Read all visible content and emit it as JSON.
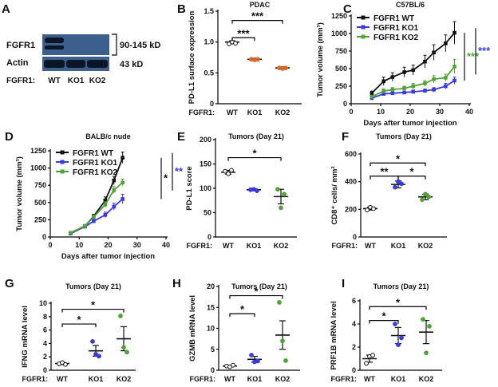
{
  "figure": {
    "background": "#ffffff"
  },
  "blot": {
    "panel_label": "A",
    "rows": [
      {
        "name": "FGFR1",
        "size": "90-145 kD"
      },
      {
        "name": "Actin",
        "size": "43 kD"
      }
    ],
    "genotype_label": "FGFR1:",
    "lanes": [
      "WT",
      "KO1",
      "KO2"
    ],
    "colors": {
      "band_bg": "#3d5f8e",
      "band": "#0b1726"
    }
  },
  "colors": {
    "black": "#111111",
    "blue": "#3b3bdc",
    "green": "#52a23a",
    "orange": "#d46a2a"
  },
  "chart_data": [
    {
      "id": "B",
      "type": "scatter",
      "title": "PDAC",
      "ylabel": "PD-L1 surface expression",
      "ylim": [
        0,
        1.5
      ],
      "yticks": [
        0,
        0.5,
        1.0,
        1.5
      ],
      "ytick_labels": [
        "0",
        "0.5",
        "1.0",
        "1.5"
      ],
      "genotype_label": "FGFR1:",
      "categories": [
        "WT",
        "KO1",
        "KO2"
      ],
      "means": [
        1.0,
        0.72,
        0.58
      ],
      "errors": [
        0.02,
        0.02,
        0.02
      ],
      "points": [
        [
          0.97,
          1.0,
          0.98
        ],
        [
          0.72,
          0.71,
          0.72
        ],
        [
          0.58,
          0.57,
          0.58
        ]
      ],
      "point_colors": [
        "#111111",
        "#d46a2a",
        "#d46a2a"
      ],
      "markers": [
        "open",
        "filled",
        "filled"
      ],
      "brackets": [
        {
          "from": 0,
          "to": 1,
          "y": 1.07,
          "label": "***"
        },
        {
          "from": 0,
          "to": 2,
          "y": 1.35,
          "label": "***"
        }
      ]
    },
    {
      "id": "C",
      "type": "line",
      "title": "C57BL/6",
      "xlabel": "Days after tumor injection",
      "ylabel": "Tumor volume (mm³)",
      "xlim": [
        0,
        40
      ],
      "xticks": [
        0,
        10,
        20,
        30,
        40
      ],
      "ylim": [
        0,
        1250
      ],
      "yticks": [
        0,
        250,
        500,
        750,
        1000,
        1250
      ],
      "series": [
        {
          "name": "FGFR1 WT",
          "color": "#111111",
          "x": [
            7,
            11,
            14,
            18,
            21,
            25,
            28,
            32,
            35
          ],
          "y": [
            150,
            320,
            380,
            450,
            480,
            600,
            730,
            860,
            1010
          ],
          "err": [
            30,
            60,
            60,
            70,
            70,
            90,
            110,
            120,
            160
          ]
        },
        {
          "name": "FGFR1 KO1",
          "color": "#3b3bdc",
          "x": [
            7,
            11,
            14,
            18,
            21,
            25,
            28,
            32,
            35
          ],
          "y": [
            80,
            140,
            150,
            160,
            170,
            185,
            200,
            250,
            330
          ],
          "err": [
            15,
            20,
            20,
            20,
            25,
            25,
            30,
            40,
            50
          ]
        },
        {
          "name": "FGFR1 KO2",
          "color": "#52a23a",
          "x": [
            7,
            11,
            14,
            18,
            21,
            25,
            28,
            32,
            35
          ],
          "y": [
            100,
            180,
            200,
            220,
            250,
            290,
            350,
            370,
            530
          ],
          "err": [
            20,
            30,
            30,
            30,
            40,
            40,
            50,
            50,
            100
          ]
        }
      ],
      "significance": [
        {
          "label": "***",
          "color": "#52a23a"
        },
        {
          "label": "***",
          "color": "#3b3bdc"
        }
      ]
    },
    {
      "id": "D",
      "type": "line",
      "title": "BALB/c nude",
      "xlabel": "Days after tumor injection",
      "ylabel": "Tumor volume (mm³)",
      "xlim": [
        0,
        40
      ],
      "xticks": [
        0,
        10,
        20,
        30,
        40
      ],
      "ylim": [
        0,
        1250
      ],
      "yticks": [
        0,
        250,
        500,
        750,
        1000,
        1250
      ],
      "series": [
        {
          "name": "FGFR1 WT",
          "color": "#111111",
          "x": [
            7,
            12,
            15,
            19,
            22,
            25
          ],
          "y": [
            60,
            160,
            300,
            530,
            820,
            1150
          ],
          "err": [
            10,
            20,
            30,
            50,
            60,
            80
          ]
        },
        {
          "name": "FGFR1 KO1",
          "color": "#3b3bdc",
          "x": [
            7,
            12,
            15,
            19,
            22,
            25
          ],
          "y": [
            50,
            150,
            230,
            320,
            440,
            550
          ],
          "err": [
            10,
            20,
            30,
            40,
            50,
            70
          ]
        },
        {
          "name": "FGFR1 KO2",
          "color": "#52a23a",
          "x": [
            7,
            12,
            15,
            19,
            22,
            25
          ],
          "y": [
            60,
            160,
            290,
            470,
            680,
            790
          ],
          "err": [
            10,
            20,
            30,
            40,
            50,
            50
          ]
        }
      ],
      "significance": [
        {
          "label": "*",
          "color": "#111111"
        },
        {
          "label": "**",
          "color": "#3b3bdc"
        }
      ]
    },
    {
      "id": "E",
      "type": "scatter",
      "title": "Tumors (Day 21)",
      "ylabel": "PD-L1 score",
      "ylim": [
        0,
        200
      ],
      "yticks": [
        0,
        50,
        100,
        150,
        200
      ],
      "ytick_labels": [
        "0",
        "50",
        "100",
        "150",
        "200"
      ],
      "genotype_label": "FGFR1:",
      "categories": [
        "WT",
        "KO1",
        "KO2"
      ],
      "means": [
        133,
        97,
        83
      ],
      "errors": [
        4,
        2,
        15
      ],
      "points": [
        [
          135,
          130,
          137
        ],
        [
          97,
          98,
          95
        ],
        [
          98,
          60,
          88
        ]
      ],
      "point_colors": [
        "#111111",
        "#3b3bdc",
        "#52a23a"
      ],
      "markers": [
        "open",
        "filled",
        "filled"
      ],
      "brackets": [
        {
          "from": 0,
          "to": 2,
          "y": 163,
          "label": "*"
        }
      ]
    },
    {
      "id": "F",
      "type": "scatter",
      "title": "Tumors (Day 21)",
      "ylabel": "CD8⁺ cells/ mm²",
      "ylim": [
        0,
        600
      ],
      "yticks": [
        0,
        200,
        400,
        600
      ],
      "ytick_labels": [
        "0",
        "200",
        "400",
        "600"
      ],
      "genotype_label": "FGFR1:",
      "categories": [
        "WT",
        "KO1",
        "KO2"
      ],
      "means": [
        205,
        380,
        290
      ],
      "errors": [
        10,
        25,
        20
      ],
      "points": [
        [
          195,
          215,
          205
        ],
        [
          360,
          400,
          385
        ],
        [
          270,
          310,
          290
        ]
      ],
      "point_colors": [
        "#111111",
        "#3b3bdc",
        "#52a23a"
      ],
      "markers": [
        "open",
        "filled",
        "filled"
      ],
      "brackets": [
        {
          "from": 0,
          "to": 1,
          "y": 440,
          "label": "**"
        },
        {
          "from": 1,
          "to": 2,
          "y": 440,
          "label": "*"
        },
        {
          "from": 0,
          "to": 2,
          "y": 535,
          "label": "*"
        }
      ]
    },
    {
      "id": "G",
      "type": "scatter",
      "title": "Tumors (Day 21)",
      "ylabel": "IFNG mRNA level",
      "ylim": [
        0,
        10
      ],
      "yticks": [
        0,
        2,
        4,
        6,
        8,
        10
      ],
      "ytick_labels": [
        "0",
        "2",
        "4",
        "6",
        "8",
        "10"
      ],
      "genotype_label": "FGFR1:",
      "categories": [
        "WT",
        "KO1",
        "KO2"
      ],
      "means": [
        1.0,
        2.9,
        4.7
      ],
      "errors": [
        0.15,
        0.8,
        1.8
      ],
      "points": [
        [
          0.95,
          1.15,
          0.85
        ],
        [
          4.3,
          2.4,
          2.1
        ],
        [
          8.1,
          3.4,
          2.7
        ]
      ],
      "point_colors": [
        "#111111",
        "#3b3bdc",
        "#52a23a"
      ],
      "markers": [
        "open",
        "filled",
        "filled"
      ],
      "brackets": [
        {
          "from": 0,
          "to": 1,
          "y": 6.9,
          "label": "*"
        },
        {
          "from": 0,
          "to": 2,
          "y": 9.1,
          "label": "*"
        }
      ]
    },
    {
      "id": "H",
      "type": "scatter",
      "title": "Tumors (Day 21)",
      "ylabel": "GZMB mRNA level",
      "ylim": [
        0,
        20
      ],
      "yticks": [
        0,
        5,
        10,
        15,
        20
      ],
      "ytick_labels": [
        "0",
        "5",
        "10",
        "15",
        "20"
      ],
      "genotype_label": "FGFR1:",
      "categories": [
        "WT",
        "KO1",
        "KO2"
      ],
      "means": [
        1.0,
        2.6,
        8.4
      ],
      "errors": [
        0.2,
        0.7,
        3.4
      ],
      "points": [
        [
          1.0,
          0.8,
          1.2
        ],
        [
          3.6,
          2.0,
          2.2
        ],
        [
          16.2,
          7.0,
          2.3
        ]
      ],
      "point_colors": [
        "#111111",
        "#3b3bdc",
        "#52a23a"
      ],
      "markers": [
        "open",
        "filled",
        "filled"
      ],
      "brackets": [
        {
          "from": 0,
          "to": 1,
          "y": 13.5,
          "label": "*"
        },
        {
          "from": 0,
          "to": 2,
          "y": 17.8,
          "label": "*"
        }
      ]
    },
    {
      "id": "I",
      "type": "scatter",
      "title": "Tumors (Day 21)",
      "ylabel": "PRF1B mRNA level",
      "ylim": [
        0,
        6
      ],
      "yticks": [
        0,
        2,
        4,
        6
      ],
      "ytick_labels": [
        "0",
        "2",
        "4",
        "6"
      ],
      "genotype_label": "FGFR1:",
      "categories": [
        "WT",
        "KO1",
        "KO2"
      ],
      "means": [
        1.0,
        3.0,
        3.3
      ],
      "errors": [
        0.3,
        0.7,
        1.0
      ],
      "points": [
        [
          0.6,
          1.2,
          1.3
        ],
        [
          4.0,
          2.2,
          2.8
        ],
        [
          4.4,
          1.5,
          3.8
        ]
      ],
      "point_colors": [
        "#111111",
        "#3b3bdc",
        "#52a23a"
      ],
      "markers": [
        "open",
        "filled",
        "filled"
      ],
      "brackets": [
        {
          "from": 0,
          "to": 1,
          "y": 4.3,
          "label": "*"
        },
        {
          "from": 0,
          "to": 2,
          "y": 5.5,
          "label": "*"
        }
      ]
    }
  ]
}
